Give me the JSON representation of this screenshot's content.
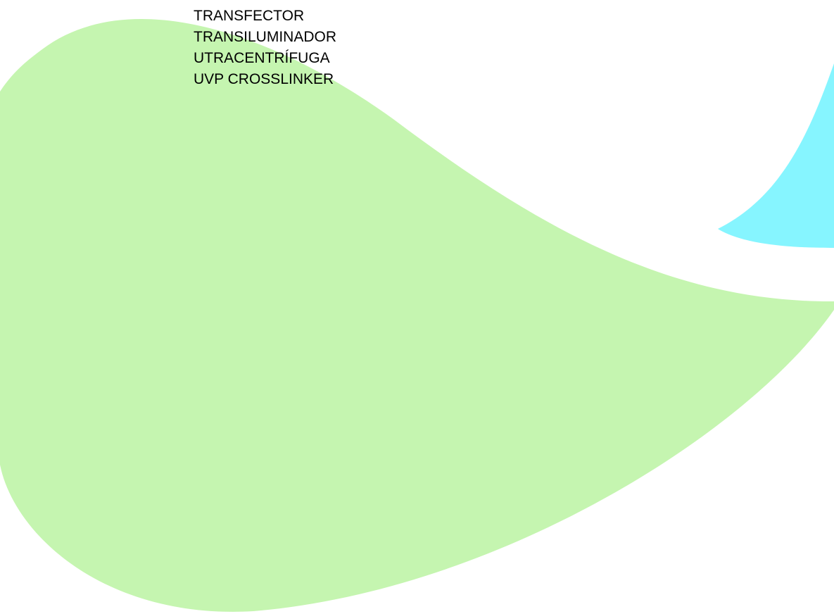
{
  "list": {
    "items": [
      "TRANSFECTOR",
      "TRANSILUMINADOR",
      "UTRACENTRÍFUGA",
      "UVP CROSSLINKER"
    ]
  }
}
